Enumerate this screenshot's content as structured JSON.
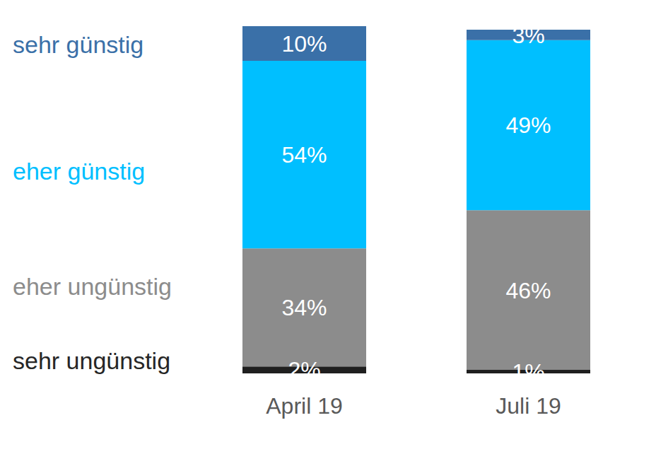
{
  "chart_data": {
    "type": "bar",
    "stacked": true,
    "data_labels": true,
    "tick_labels": "x",
    "categories": [
      "April 19",
      "Juli 19"
    ],
    "ylim": [
      0,
      100
    ],
    "series": [
      {
        "name": "sehr ungünstig",
        "color": "#1f1f1f",
        "values": [
          2,
          1
        ],
        "value_labels": [
          "2%",
          "1%"
        ]
      },
      {
        "name": "eher ungünstig",
        "color": "#8c8c8c",
        "values": [
          34,
          46
        ],
        "value_labels": [
          "34%",
          "46%"
        ]
      },
      {
        "name": "eher günstig",
        "color": "#00bfff",
        "values": [
          54,
          49
        ],
        "value_labels": [
          "54%",
          "49%"
        ]
      },
      {
        "name": "sehr günstig",
        "color": "#3a70a8",
        "values": [
          10,
          3
        ],
        "value_labels": [
          "10%",
          "3%"
        ]
      }
    ]
  }
}
